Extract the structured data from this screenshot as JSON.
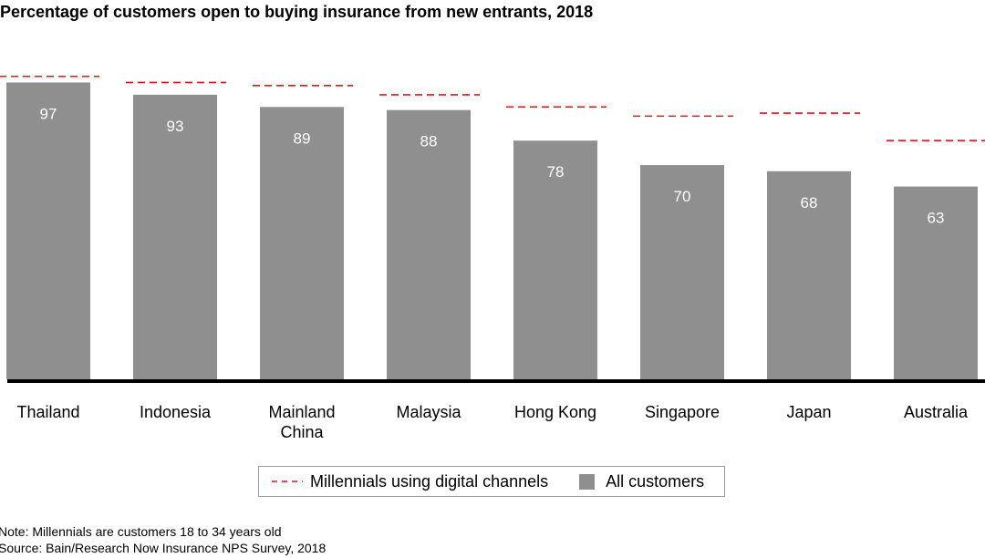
{
  "chart_data": {
    "type": "bar",
    "title": "Percentage of customers open to buying insurance from new entrants, 2018",
    "categories": [
      "Thailand",
      "Indonesia",
      "Mainland China",
      "Malaysia",
      "Hong Kong",
      "Singapore",
      "Japan",
      "Australia"
    ],
    "category_lines": [
      [
        "Thailand"
      ],
      [
        "Indonesia"
      ],
      [
        "Mainland",
        "China"
      ],
      [
        "Malaysia"
      ],
      [
        "Hong Kong"
      ],
      [
        "Singapore"
      ],
      [
        "Japan"
      ],
      [
        "Australia"
      ]
    ],
    "series": [
      {
        "name": "All customers",
        "type": "bar",
        "color": "#8f8f8f",
        "values": [
          97,
          93,
          89,
          88,
          78,
          70,
          68,
          63
        ]
      },
      {
        "name": "Millennials using digital channels",
        "type": "dashed-marker",
        "color": "#e1141e",
        "values": [
          99,
          97,
          96,
          93,
          89,
          86,
          87,
          78
        ]
      }
    ],
    "ylim": [
      0,
      100
    ],
    "xlabel": "",
    "ylabel": "",
    "grid": false,
    "legend_position": "bottom-center",
    "data_labels": true
  },
  "legend": {
    "millennials_label": "Millennials using digital channels",
    "all_label": "All customers"
  },
  "footnotes": {
    "note": "Note: Millennials are customers 18 to 34 years old",
    "source": "Source: Bain/Research Now Insurance NPS Survey, 2018"
  }
}
